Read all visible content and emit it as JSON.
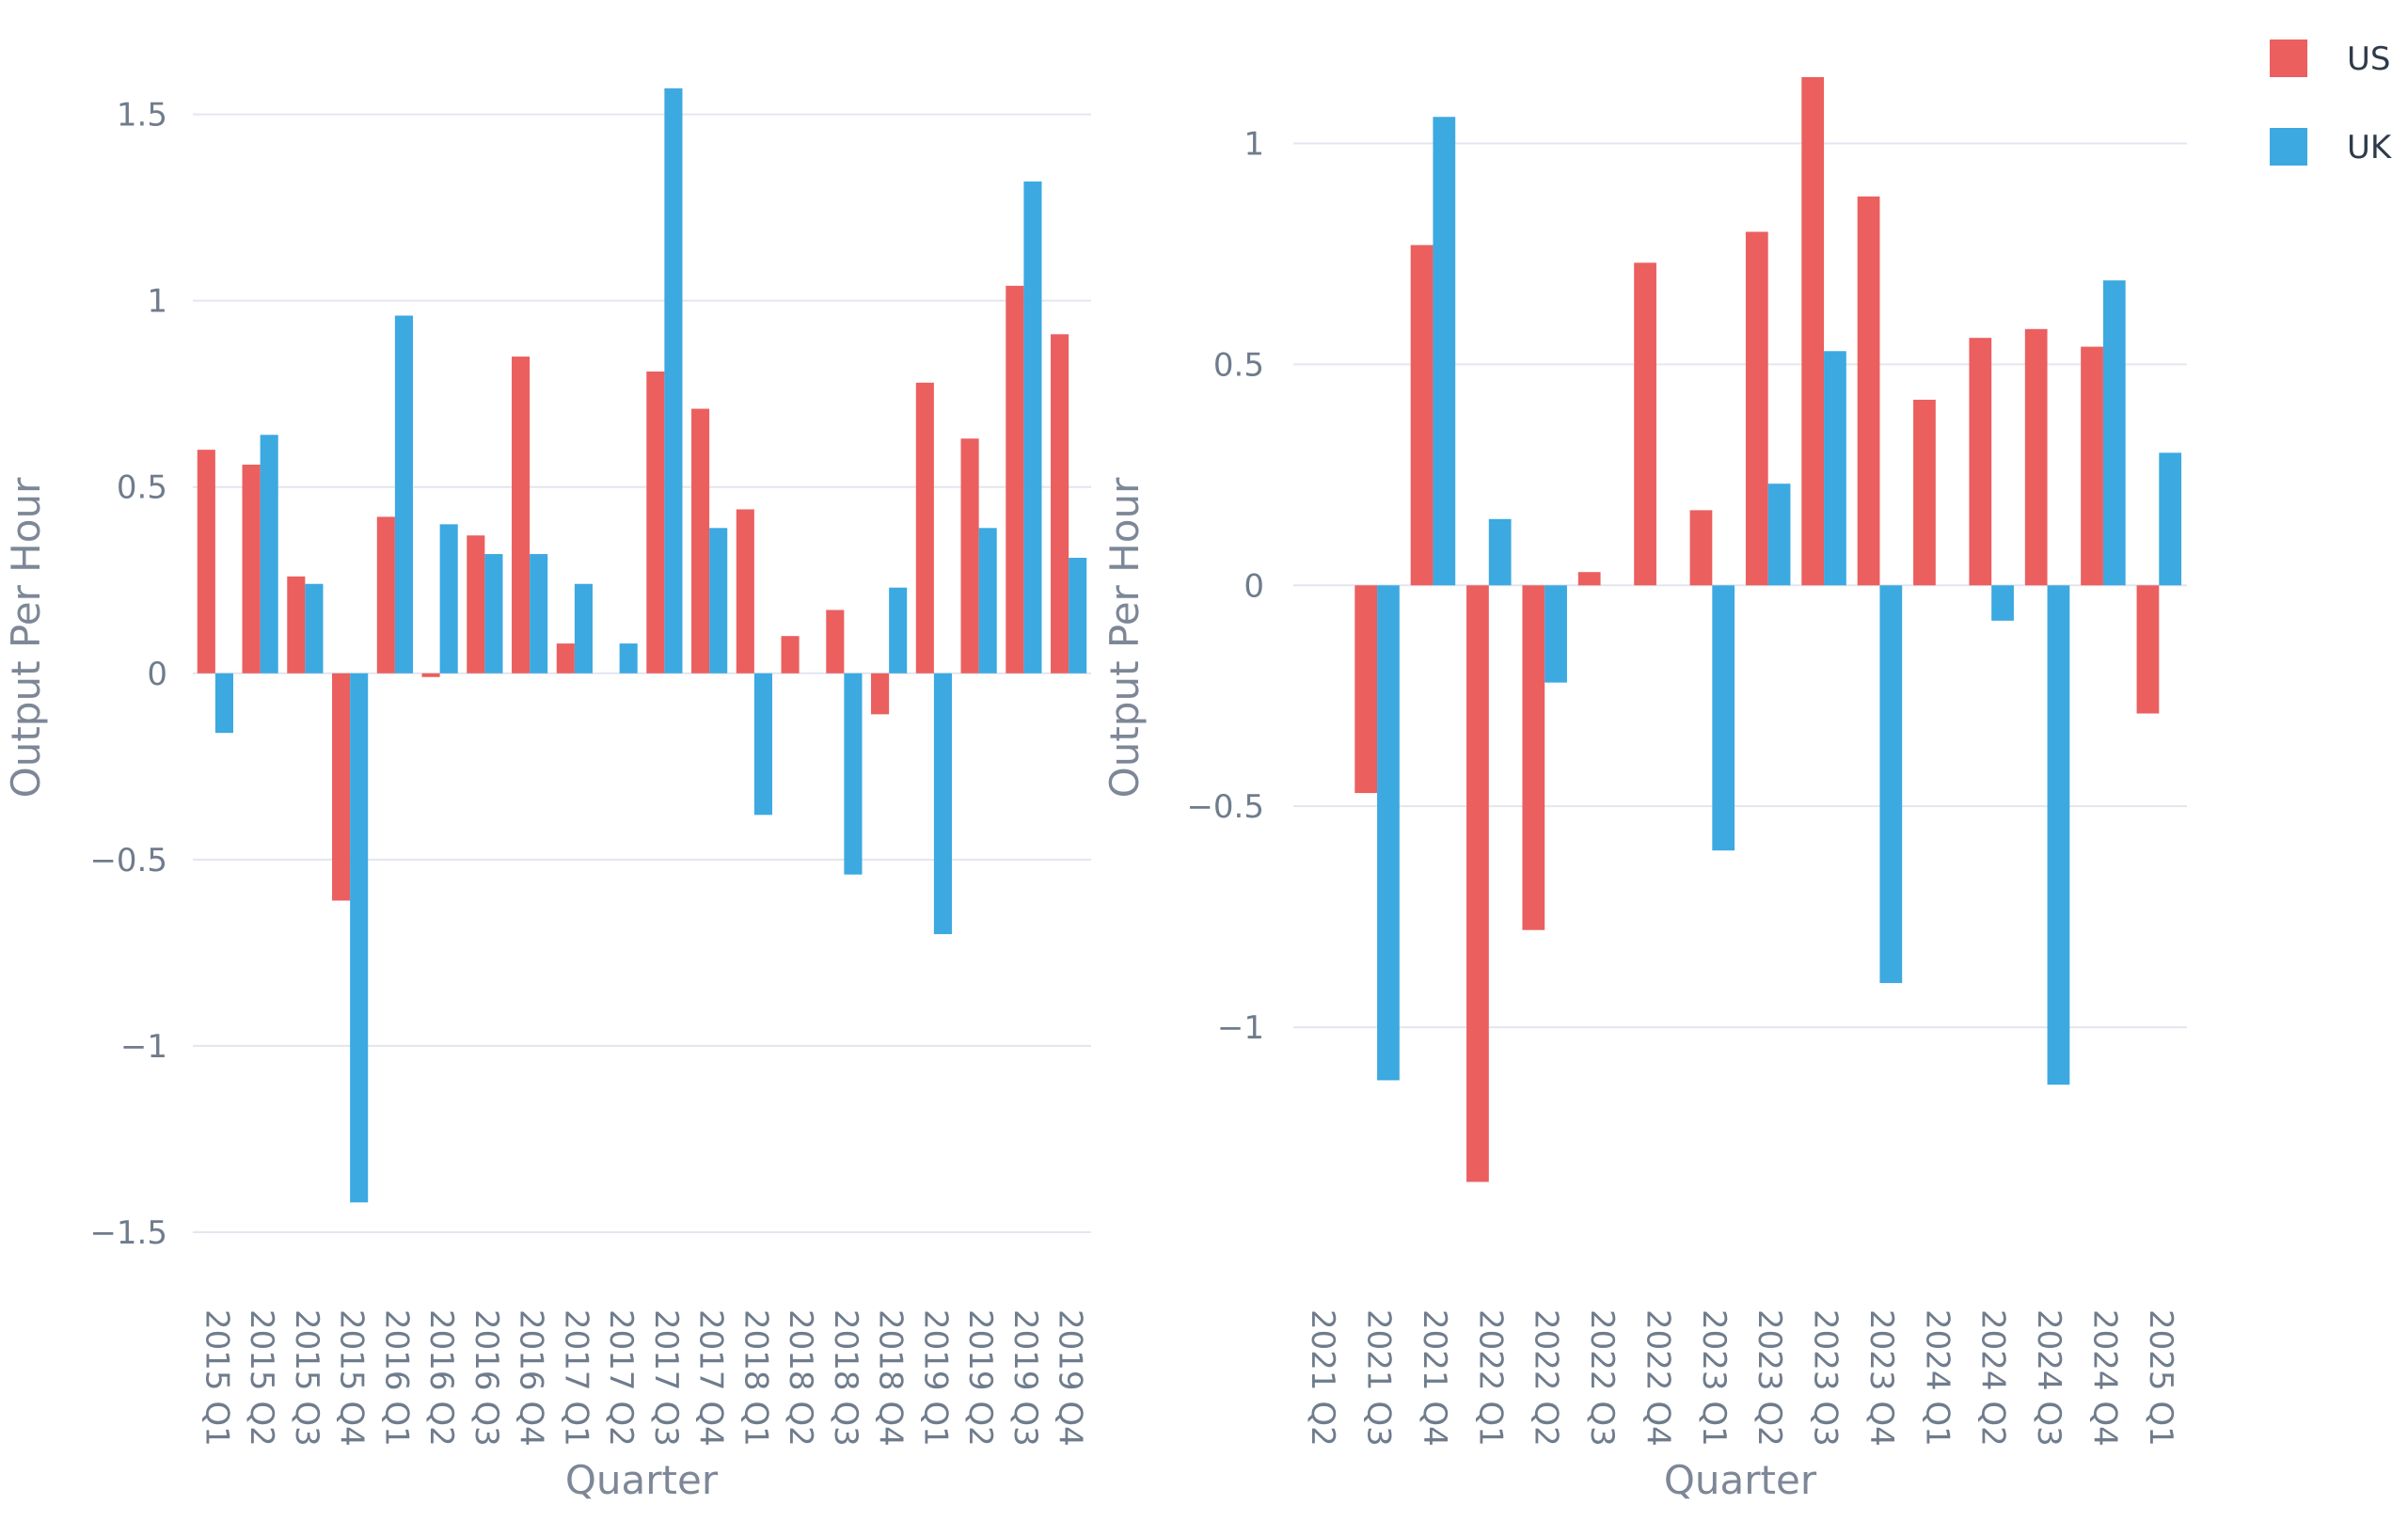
{
  "colors": {
    "US": "#eb5f5f",
    "UK": "#3ca9e1",
    "grid": "#e3e6ef",
    "text": "#6f7c8c"
  },
  "legend": [
    {
      "label": "US",
      "color": "#eb5f5f"
    },
    {
      "label": "UK",
      "color": "#3ca9e1"
    }
  ],
  "chart_data": [
    {
      "type": "bar",
      "xlabel": "Quarter",
      "ylabel": "Output Per Hour",
      "ylim": [
        -1.5,
        1.6
      ],
      "yticks": [
        {
          "value": 1.5,
          "label": "1.5"
        },
        {
          "value": 1,
          "label": "1"
        },
        {
          "value": 0.5,
          "label": "0.5"
        },
        {
          "value": 0,
          "label": "0"
        },
        {
          "value": -0.5,
          "label": "−0.5"
        },
        {
          "value": -1,
          "label": "−1"
        },
        {
          "value": -1.5,
          "label": "−1.5"
        }
      ],
      "grid": true,
      "categories": [
        "2015 Q1",
        "2015 Q2",
        "2015 Q3",
        "2015 Q4",
        "2016 Q1",
        "2016 Q2",
        "2016 Q3",
        "2016 Q4",
        "2017 Q1",
        "2017 Q2",
        "2017 Q3",
        "2017 Q4",
        "2018 Q1",
        "2018 Q2",
        "2018 Q3",
        "2018 Q4",
        "2019 Q1",
        "2019 Q2",
        "2019 Q3",
        "2019 Q4"
      ],
      "series": [
        {
          "name": "US",
          "values": [
            0.6,
            0.56,
            0.26,
            -0.61,
            0.42,
            -0.01,
            0.37,
            0.85,
            0.08,
            0.0,
            0.81,
            0.71,
            0.44,
            0.1,
            0.17,
            -0.11,
            0.78,
            0.63,
            1.04,
            0.91
          ]
        },
        {
          "name": "UK",
          "values": [
            -0.16,
            0.64,
            0.24,
            -1.42,
            0.96,
            0.4,
            0.32,
            0.32,
            0.24,
            0.08,
            1.57,
            0.39,
            -0.38,
            0.0,
            -0.54,
            0.23,
            -0.7,
            0.39,
            1.32,
            0.31
          ]
        }
      ]
    },
    {
      "type": "bar",
      "xlabel": "Quarter",
      "ylabel": "Output Per Hour",
      "ylim": [
        -1.4,
        1.15
      ],
      "yticks": [
        {
          "value": 1,
          "label": "1"
        },
        {
          "value": 0.5,
          "label": "0.5"
        },
        {
          "value": 0,
          "label": "0"
        },
        {
          "value": -0.5,
          "label": "−0.5"
        },
        {
          "value": -1,
          "label": "−1"
        }
      ],
      "grid": true,
      "categories": [
        "2021 Q2",
        "2021 Q3",
        "2021 Q4",
        "2022 Q1",
        "2022 Q2",
        "2022 Q3",
        "2022 Q4",
        "2023 Q1",
        "2023 Q2",
        "2023 Q3",
        "2023 Q4",
        "2024 Q1",
        "2024 Q2",
        "2024 Q3",
        "2024 Q4",
        "2025 Q1"
      ],
      "series": [
        {
          "name": "US",
          "values": [
            0.0,
            -0.47,
            0.77,
            -1.35,
            -0.78,
            0.03,
            0.73,
            0.17,
            0.8,
            1.15,
            0.88,
            0.42,
            0.56,
            0.58,
            0.54,
            -0.29
          ]
        },
        {
          "name": "UK",
          "values": [
            0.0,
            -1.12,
            1.06,
            0.15,
            -0.22,
            0.0,
            0.0,
            -0.6,
            0.23,
            0.53,
            -0.9,
            0.0,
            -0.08,
            -1.13,
            0.69,
            0.3
          ]
        }
      ]
    }
  ]
}
